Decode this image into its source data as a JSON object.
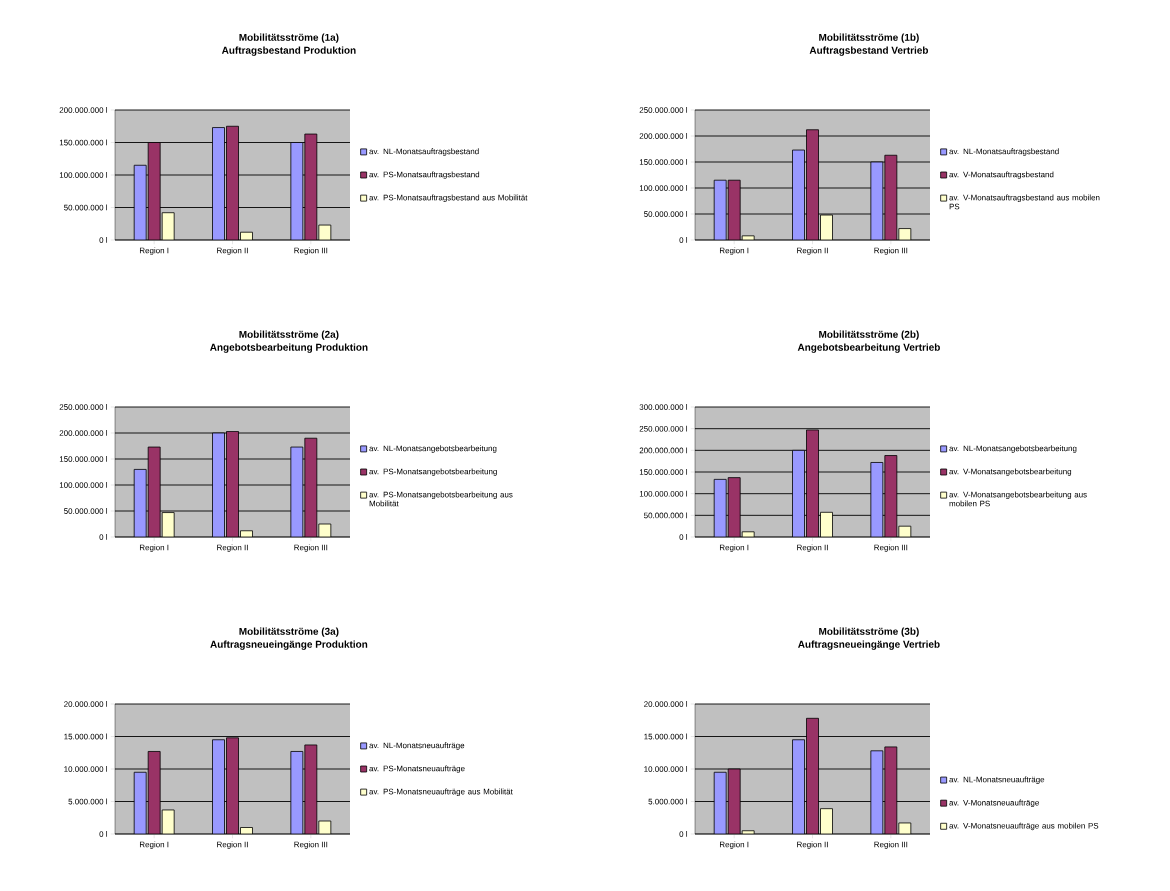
{
  "chart_data": [
    {
      "type": "bar",
      "title": "Mobilitätsströme (1a)",
      "subtitle": "Auftragsbestand Produktion",
      "categories": [
        "Region I",
        "Region II",
        "Region III"
      ],
      "ylim": [
        0,
        200000000
      ],
      "yticks": [
        {
          "value": 0,
          "label": "0 l"
        },
        {
          "value": 50000000,
          "label": "50.000.000 l"
        },
        {
          "value": 100000000,
          "label": "100.000.000 l"
        },
        {
          "value": 150000000,
          "label": "150.000.000 l"
        },
        {
          "value": 200000000,
          "label": "200.000.000 l"
        }
      ],
      "grid": "y",
      "legend": "right",
      "series": [
        {
          "name": "av. NL-Monatsauftragsbestand",
          "color": "#9999ff",
          "values": [
            115000000,
            173000000,
            150000000
          ]
        },
        {
          "name": "av. PS-Monatsauftragsbestand",
          "color": "#993366",
          "values": [
            150000000,
            175000000,
            163000000
          ]
        },
        {
          "name": "av. PS-Monatsauftragsbestand aus Mobilität",
          "color": "#ffffcc",
          "values": [
            42000000,
            12000000,
            23000000
          ]
        }
      ]
    },
    {
      "type": "bar",
      "title": "Mobilitätsströme (1b)",
      "subtitle": "Auftragsbestand Vertrieb",
      "categories": [
        "Region I",
        "Region II",
        "Region III"
      ],
      "ylim": [
        0,
        250000000
      ],
      "yticks": [
        {
          "value": 0,
          "label": "0 l"
        },
        {
          "value": 50000000,
          "label": "50.000.000 l"
        },
        {
          "value": 100000000,
          "label": "100.000.000 l"
        },
        {
          "value": 150000000,
          "label": "150.000.000 l"
        },
        {
          "value": 200000000,
          "label": "200.000.000 l"
        },
        {
          "value": 250000000,
          "label": "250.000.000 l"
        }
      ],
      "grid": "y",
      "legend": "right",
      "series": [
        {
          "name": "av. NL-Monatsauftragsbestand",
          "color": "#9999ff",
          "values": [
            115000000,
            173000000,
            150000000
          ]
        },
        {
          "name": "av. V-Monatsauftragsbestand",
          "color": "#993366",
          "values": [
            115000000,
            212000000,
            163000000
          ]
        },
        {
          "name": "av. V-Monatsauftragsbestand aus mobilen PS",
          "color": "#ffffcc",
          "values": [
            8000000,
            48000000,
            22000000
          ]
        }
      ]
    },
    {
      "type": "bar",
      "title": "Mobilitätsströme (2a)",
      "subtitle": "Angebotsbearbeitung Produktion",
      "categories": [
        "Region I",
        "Region II",
        "Region III"
      ],
      "ylim": [
        0,
        250000000
      ],
      "yticks": [
        {
          "value": 0,
          "label": "0 l"
        },
        {
          "value": 50000000,
          "label": "50.000.000 l"
        },
        {
          "value": 100000000,
          "label": "100.000.000 l"
        },
        {
          "value": 150000000,
          "label": "150.000.000 l"
        },
        {
          "value": 200000000,
          "label": "200.000.000 l"
        },
        {
          "value": 250000000,
          "label": "250.000.000 l"
        }
      ],
      "grid": "y",
      "legend": "right",
      "series": [
        {
          "name": "av. NL-Monatsangebotsbearbeitung",
          "color": "#9999ff",
          "values": [
            130000000,
            200000000,
            173000000
          ]
        },
        {
          "name": "av. PS-Monatsangebotsbearbeitung",
          "color": "#993366",
          "values": [
            173000000,
            203000000,
            190000000
          ]
        },
        {
          "name": "av. PS-Monatsangebotsbearbeitung aus Mobilität",
          "color": "#ffffcc",
          "values": [
            47000000,
            12000000,
            25000000
          ]
        }
      ]
    },
    {
      "type": "bar",
      "title": "Mobilitätsströme (2b)",
      "subtitle": "Angebotsbearbeitung Vertrieb",
      "categories": [
        "Region I",
        "Region II",
        "Region III"
      ],
      "ylim": [
        0,
        300000000
      ],
      "yticks": [
        {
          "value": 0,
          "label": "0 l"
        },
        {
          "value": 50000000,
          "label": "50.000.000 l"
        },
        {
          "value": 100000000,
          "label": "100.000.000 l"
        },
        {
          "value": 150000000,
          "label": "150.000.000 l"
        },
        {
          "value": 200000000,
          "label": "200.000.000 l"
        },
        {
          "value": 250000000,
          "label": "250.000.000 l"
        },
        {
          "value": 300000000,
          "label": "300.000.000 l"
        }
      ],
      "grid": "y",
      "legend": "right",
      "series": [
        {
          "name": "av. NL-Monatsangebotsbearbeitung",
          "color": "#9999ff",
          "values": [
            133000000,
            200000000,
            172000000
          ]
        },
        {
          "name": "av. V-Monatsangebotsbearbeitung",
          "color": "#993366",
          "values": [
            137000000,
            247000000,
            188000000
          ]
        },
        {
          "name": "av. V-Monatsangebotsbearbeitung aus mobilen PS",
          "color": "#ffffcc",
          "values": [
            12000000,
            57000000,
            25000000
          ]
        }
      ]
    },
    {
      "type": "bar",
      "title": "Mobilitätsströme (3a)",
      "subtitle": "Auftragsneueingänge Produktion",
      "categories": [
        "Region I",
        "Region II",
        "Region III"
      ],
      "ylim": [
        0,
        20000000
      ],
      "yticks": [
        {
          "value": 0,
          "label": "0 l"
        },
        {
          "value": 5000000,
          "label": "5.000.000 l"
        },
        {
          "value": 10000000,
          "label": "10.000.000 l"
        },
        {
          "value": 15000000,
          "label": "15.000.000 l"
        },
        {
          "value": 20000000,
          "label": "20.000.000 l"
        }
      ],
      "grid": "y",
      "legend": "right",
      "series": [
        {
          "name": "av. NL-Monatsneuaufträge",
          "color": "#9999ff",
          "values": [
            9500000,
            14500000,
            12700000
          ]
        },
        {
          "name": "av. PS-Monatsneuaufträge",
          "color": "#993366",
          "values": [
            12700000,
            14800000,
            13700000
          ]
        },
        {
          "name": "av. PS-Monatsneuaufträge aus Mobilität",
          "color": "#ffffcc",
          "values": [
            3700000,
            1000000,
            2000000
          ]
        }
      ]
    },
    {
      "type": "bar",
      "title": "Mobilitätsströme (3b)",
      "subtitle": "Auftragsneueingänge Vertrieb",
      "categories": [
        "Region I",
        "Region II",
        "Region III"
      ],
      "ylim": [
        0,
        20000000
      ],
      "yticks": [
        {
          "value": 0,
          "label": "0 l"
        },
        {
          "value": 5000000,
          "label": "5.000.000 l"
        },
        {
          "value": 10000000,
          "label": "10.000.000 l"
        },
        {
          "value": 15000000,
          "label": "15.000.000 l"
        },
        {
          "value": 20000000,
          "label": "20.000.000 l"
        }
      ],
      "grid": "y",
      "legend": "bottom right",
      "series": [
        {
          "name": "av. NL-Monatsneuaufträge",
          "color": "#9999ff",
          "values": [
            9500000,
            14500000,
            12800000
          ]
        },
        {
          "name": "av. V-Monatsneuaufträge",
          "color": "#993366",
          "values": [
            10000000,
            17800000,
            13400000
          ]
        },
        {
          "name": "av. V-Monatsneuaufträge aus mobilen PS",
          "color": "#ffffcc",
          "values": [
            500000,
            3900000,
            1700000
          ]
        }
      ]
    }
  ]
}
